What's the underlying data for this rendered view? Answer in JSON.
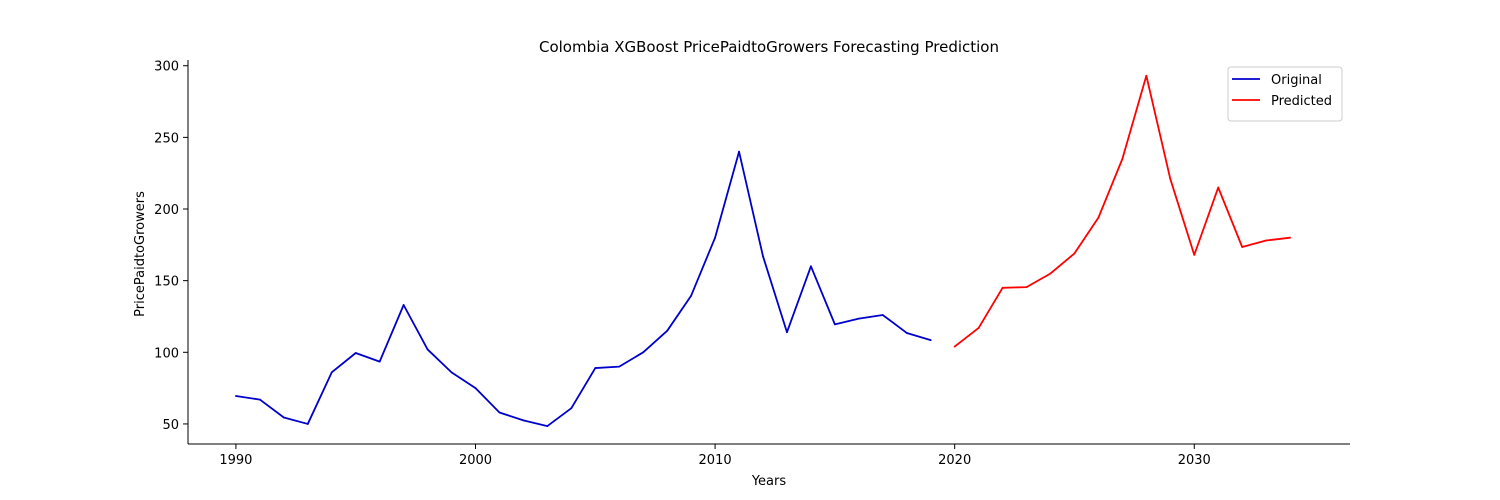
{
  "chart_data": {
    "type": "line",
    "title": "Colombia XGBoost PricePaidtoGrowers Forecasting Prediction",
    "xlabel": "Years",
    "ylabel": "PricePaidtoGrowers",
    "xlim": [
      1988,
      2036.5
    ],
    "ylim": [
      36,
      304
    ],
    "xticks": [
      1990,
      2000,
      2010,
      2020,
      2030
    ],
    "yticks": [
      50,
      100,
      150,
      200,
      250,
      300
    ],
    "grid": false,
    "legend_position": "top-right",
    "series": [
      {
        "name": "Original",
        "color": "#0000cc",
        "x": [
          1990,
          1991,
          1992,
          1993,
          1994,
          1995,
          1996,
          1997,
          1998,
          1999,
          2000,
          2001,
          2002,
          2003,
          2004,
          2005,
          2006,
          2007,
          2008,
          2009,
          2010,
          2011,
          2012,
          2013,
          2014,
          2015,
          2016,
          2017,
          2018,
          2019
        ],
        "y": [
          69.5,
          67,
          54.5,
          50,
          86,
          99.5,
          93.5,
          133,
          102,
          86,
          75,
          58,
          52.5,
          48.5,
          61,
          89,
          90,
          100,
          115,
          139.5,
          180,
          240,
          167,
          114,
          160,
          119.5,
          123.5,
          126,
          113.5,
          108.5
        ]
      },
      {
        "name": "Predicted",
        "color": "#ff0000",
        "x": [
          2020,
          2021,
          2022,
          2023,
          2024,
          2025,
          2026,
          2027,
          2028,
          2029,
          2030,
          2031,
          2032,
          2033,
          2034
        ],
        "y": [
          104,
          117,
          145,
          145.5,
          155,
          169,
          194,
          235,
          293,
          221,
          168,
          215,
          173.5,
          178,
          180
        ]
      }
    ]
  }
}
